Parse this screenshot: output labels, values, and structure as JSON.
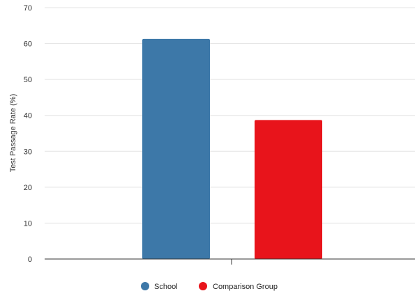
{
  "chart_data": {
    "type": "bar",
    "title": "",
    "xlabel": "",
    "ylabel": "Test Passage Rate (%)",
    "ylim": [
      0,
      70
    ],
    "yticks": [
      0,
      10,
      20,
      30,
      40,
      50,
      60,
      70
    ],
    "grid": true,
    "legend_position": "bottom",
    "categories": [
      ""
    ],
    "series": [
      {
        "name": "School",
        "values": [
          61.3
        ],
        "color": "#3d78a8"
      },
      {
        "name": "Comparison Group",
        "values": [
          38.7
        ],
        "color": "#e8141b"
      }
    ]
  }
}
